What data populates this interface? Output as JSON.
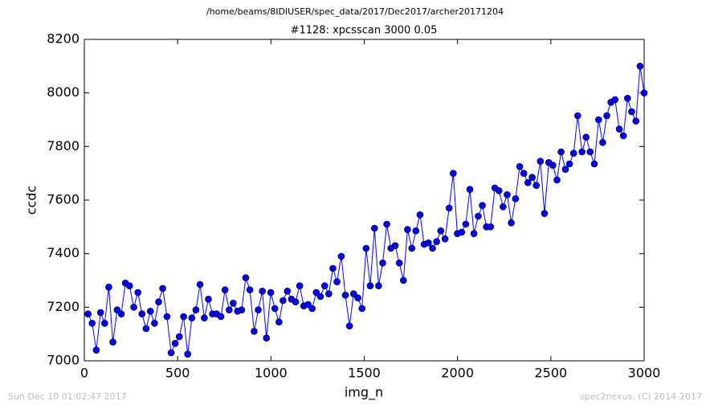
{
  "chart_data": {
    "type": "line",
    "suptitle": "/home/beams/8IDIUSER/spec_data/2017/Dec2017/archer20171204",
    "title": "#1128: xpcsscan 3000 0.05",
    "x_label": "img_n",
    "y_label": "ccdc",
    "footer_left": "Sun Dec 10 01:02:47 2017",
    "footer_right": "spec2nexus, (C) 2014-2017",
    "xlim": [
      0,
      3000
    ],
    "ylim": [
      7000,
      8200
    ],
    "xticks": [
      0,
      500,
      1000,
      1500,
      2000,
      2500,
      3000
    ],
    "yticks": [
      7000,
      7200,
      7400,
      7600,
      7800,
      8000,
      8200
    ],
    "grid": false,
    "x": [
      20,
      42,
      64,
      87,
      109,
      131,
      153,
      176,
      198,
      220,
      242,
      265,
      287,
      309,
      331,
      354,
      376,
      398,
      420,
      443,
      465,
      487,
      509,
      532,
      554,
      576,
      598,
      620,
      643,
      665,
      687,
      709,
      732,
      754,
      776,
      798,
      821,
      843,
      865,
      887,
      910,
      932,
      954,
      976,
      999,
      1021,
      1043,
      1065,
      1088,
      1110,
      1132,
      1154,
      1176,
      1199,
      1221,
      1243,
      1265,
      1288,
      1310,
      1332,
      1354,
      1377,
      1399,
      1421,
      1443,
      1466,
      1488,
      1510,
      1532,
      1555,
      1577,
      1599,
      1621,
      1643,
      1666,
      1688,
      1710,
      1732,
      1755,
      1777,
      1799,
      1821,
      1844,
      1866,
      1888,
      1910,
      1933,
      1955,
      1977,
      1999,
      2022,
      2044,
      2066,
      2088,
      2111,
      2133,
      2155,
      2177,
      2200,
      2222,
      2244,
      2266,
      2288,
      2311,
      2333,
      2355,
      2377,
      2400,
      2422,
      2444,
      2466,
      2489,
      2511,
      2533,
      2555,
      2578,
      2600,
      2622,
      2644,
      2667,
      2689,
      2711,
      2733,
      2756,
      2778,
      2800,
      2822,
      2844,
      2867,
      2889,
      2911,
      2933,
      2956,
      2978,
      3000
    ],
    "series": [
      {
        "name": "ccdc",
        "color": "#0000ff",
        "values": [
          7175,
          7140,
          7040,
          7180,
          7140,
          7275,
          7070,
          7190,
          7175,
          7290,
          7280,
          7200,
          7255,
          7175,
          7120,
          7185,
          7140,
          7220,
          7270,
          7165,
          7030,
          7065,
          7090,
          7165,
          7025,
          7160,
          7190,
          7285,
          7160,
          7230,
          7175,
          7175,
          7165,
          7265,
          7190,
          7215,
          7185,
          7190,
          7310,
          7265,
          7110,
          7190,
          7260,
          7085,
          7255,
          7195,
          7145,
          7225,
          7260,
          7230,
          7220,
          7280,
          7205,
          7210,
          7195,
          7255,
          7240,
          7280,
          7250,
          7345,
          7295,
          7390,
          7245,
          7130,
          7250,
          7235,
          7195,
          7420,
          7280,
          7495,
          7280,
          7365,
          7510,
          7420,
          7430,
          7365,
          7300,
          7490,
          7420,
          7485,
          7545,
          7435,
          7440,
          7420,
          7445,
          7485,
          7455,
          7570,
          7700,
          7475,
          7480,
          7510,
          7640,
          7475,
          7540,
          7580,
          7500,
          7500,
          7645,
          7635,
          7575,
          7620,
          7515,
          7605,
          7725,
          7700,
          7665,
          7685,
          7655,
          7745,
          7550,
          7740,
          7730,
          7675,
          7780,
          7715,
          7735,
          7775,
          7915,
          7780,
          7835,
          7780,
          7735,
          7900,
          7815,
          7915,
          7965,
          7975,
          7865,
          7840,
          7980,
          7930,
          7895,
          8100,
          8000
        ]
      }
    ]
  }
}
